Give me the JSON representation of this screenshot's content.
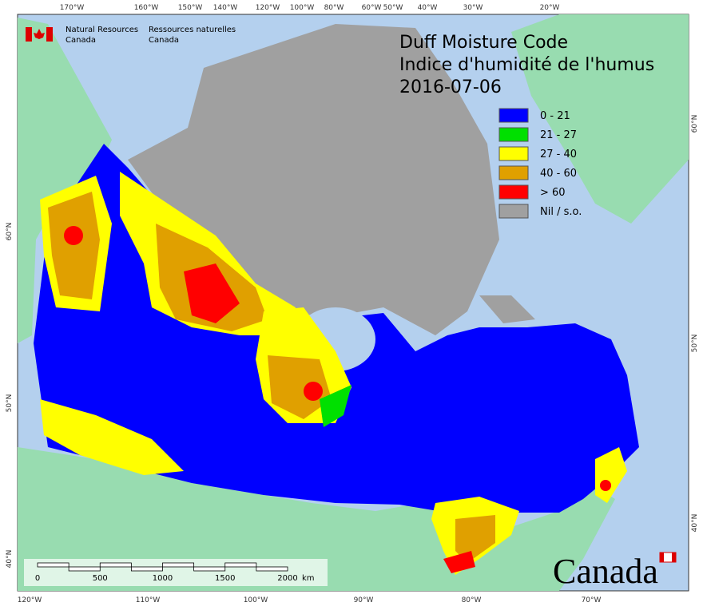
{
  "header": {
    "agency_en": [
      "Natural Resources",
      "Canada"
    ],
    "agency_fr": [
      "Ressources naturelles",
      "Canada"
    ]
  },
  "title": {
    "lines": [
      "Duff Moisture Code",
      "Indice d'humidité de l'humus",
      "2016-07-06"
    ]
  },
  "legend": [
    {
      "label": "0 - 21",
      "color": "#0000ff"
    },
    {
      "label": "21 - 27",
      "color": "#00e000"
    },
    {
      "label": "27 - 40",
      "color": "#ffff00"
    },
    {
      "label": "40 - 60",
      "color": "#e0a000"
    },
    {
      "label": "> 60",
      "color": "#ff0000"
    },
    {
      "label": "Nil / s.o.",
      "color": "#a0a0a0"
    }
  ],
  "graticule": {
    "top": [
      "170°W",
      "160°W",
      "150°W",
      "140°W",
      "120°W",
      "100°W",
      "80°W",
      "60°W",
      "50°W",
      "40°W",
      "30°W",
      "20°W"
    ],
    "bottom": [
      "120°W",
      "110°W",
      "100°W",
      "90°W",
      "80°W",
      "70°W"
    ],
    "left": [
      "60°N",
      "50°N",
      "40°N"
    ],
    "right": [
      "60°N",
      "50°N",
      "40°N"
    ]
  },
  "scale_bar": {
    "labels": [
      "0",
      "500",
      "1000",
      "1500",
      "2000"
    ],
    "unit": "km"
  },
  "wordmark": "Canada"
}
